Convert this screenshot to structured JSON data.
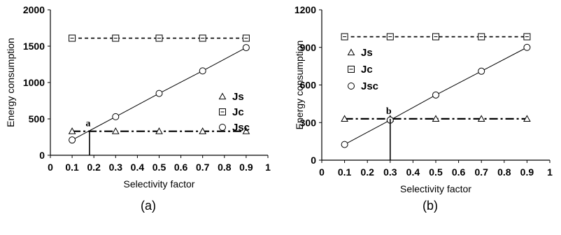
{
  "chart_data": [
    {
      "type": "line",
      "caption": "(a)",
      "xlabel": "Selectivity factor",
      "ylabel": "Energy consumption",
      "xlim": [
        0,
        1
      ],
      "ylim": [
        0,
        2000
      ],
      "x_ticks": [
        "0",
        "0.1",
        "0.2",
        "0.3",
        "0.4",
        "0.5",
        "0.6",
        "0.7",
        "0.8",
        "0.9",
        "1"
      ],
      "y_ticks": [
        "0",
        "500",
        "1000",
        "1500",
        "2000"
      ],
      "legend_position": "right",
      "series": [
        {
          "name": "Js",
          "marker": "triangle",
          "line": "dash-dot",
          "x": [
            0.1,
            0.3,
            0.5,
            0.7,
            0.9
          ],
          "values": [
            330,
            330,
            330,
            330,
            330
          ]
        },
        {
          "name": "Jc",
          "marker": "square",
          "line": "dashed",
          "x": [
            0.1,
            0.3,
            0.5,
            0.7,
            0.9
          ],
          "values": [
            1610,
            1610,
            1610,
            1610,
            1610
          ]
        },
        {
          "name": "Jsc",
          "marker": "circle",
          "line": "solid",
          "x": [
            0.1,
            0.3,
            0.5,
            0.7,
            0.9
          ],
          "values": [
            210,
            530,
            850,
            1160,
            1480
          ]
        }
      ],
      "annotation": {
        "label": "a",
        "x": 0.18,
        "y": 330
      }
    },
    {
      "type": "line",
      "caption": "(b)",
      "xlabel": "Selectivity factor",
      "ylabel": "Energy consumption",
      "xlim": [
        0,
        1
      ],
      "ylim": [
        0,
        1200
      ],
      "x_ticks": [
        "0",
        "0.1",
        "0.2",
        "0.3",
        "0.4",
        "0.5",
        "0.6",
        "0.7",
        "0.8",
        "0.9",
        "1"
      ],
      "y_ticks": [
        "0",
        "300",
        "600",
        "900",
        "1200"
      ],
      "legend_position": "left",
      "series": [
        {
          "name": "Js",
          "marker": "triangle",
          "line": "dash-dot",
          "x": [
            0.1,
            0.3,
            0.5,
            0.7,
            0.9
          ],
          "values": [
            330,
            330,
            330,
            330,
            330
          ]
        },
        {
          "name": "Jc",
          "marker": "square",
          "line": "dashed",
          "x": [
            0.1,
            0.3,
            0.5,
            0.7,
            0.9
          ],
          "values": [
            985,
            985,
            985,
            985,
            985
          ]
        },
        {
          "name": "Jsc",
          "marker": "circle",
          "line": "solid",
          "x": [
            0.1,
            0.3,
            0.5,
            0.7,
            0.9
          ],
          "values": [
            125,
            320,
            520,
            710,
            900
          ]
        }
      ],
      "annotation": {
        "label": "b",
        "x": 0.3,
        "y": 330
      }
    }
  ]
}
